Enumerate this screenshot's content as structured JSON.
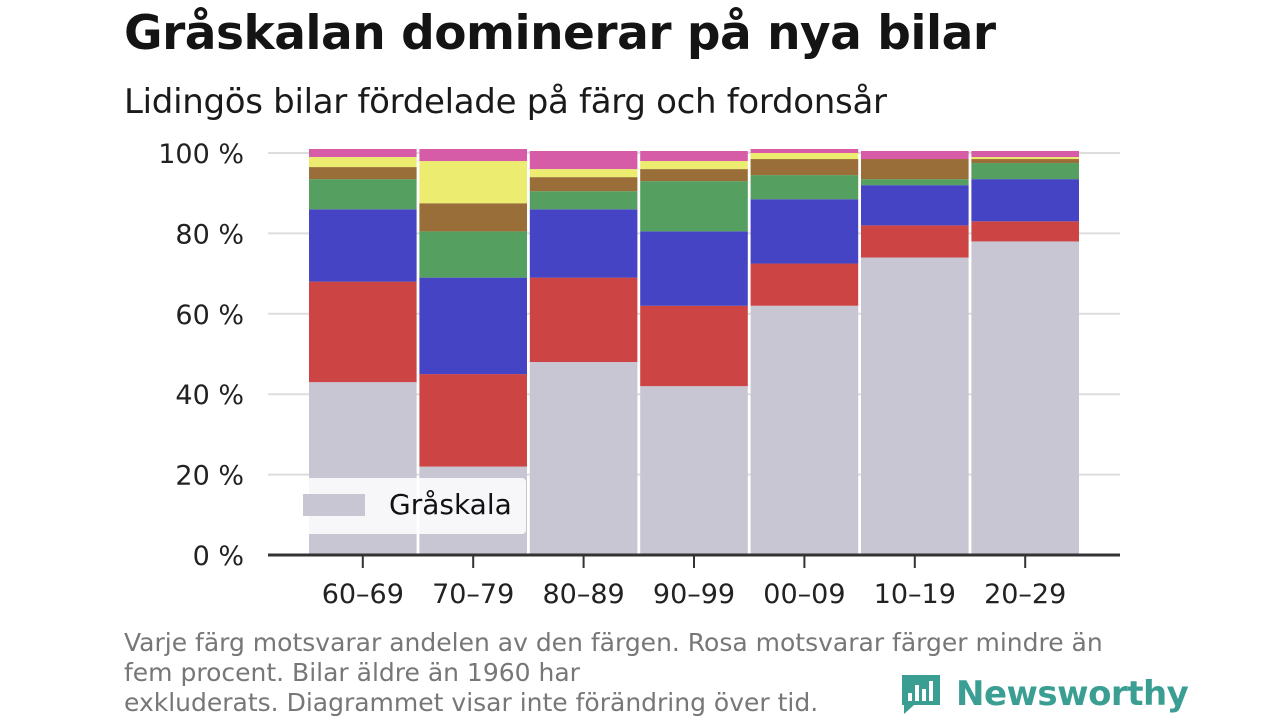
{
  "header": {
    "title": "Gråskalan dominerar på nya bilar",
    "subtitle": "Lidingös bilar fördelade på färg och fordonsår"
  },
  "footer": {
    "note_lines": [
      "Varje färg motsvarar andelen av den färgen. Rosa motsvarar färger mindre än",
      "fem procent. Bilar äldre än 1960 har",
      "exkluderats. Diagrammet visar inte förändring över tid."
    ],
    "brand": "Newsworthy",
    "brand_icon": "newsworthy-logo-icon",
    "brand_color": "#3a9e93"
  },
  "chart_data": {
    "type": "bar",
    "stacked": true,
    "categories": [
      "60–69",
      "70–79",
      "80–89",
      "90–99",
      "00–09",
      "10–19",
      "20–29"
    ],
    "series": [
      {
        "name": "Gråskala",
        "color": "#c8c6d3",
        "values": [
          43,
          22,
          48,
          42,
          62,
          74,
          78
        ]
      },
      {
        "color": "#cc4444",
        "values": [
          25,
          23,
          21,
          20,
          10.5,
          8,
          5
        ]
      },
      {
        "color": "#4444c4",
        "values": [
          18,
          24,
          17,
          18.5,
          16,
          10,
          10.5
        ]
      },
      {
        "color": "#55a060",
        "values": [
          7.5,
          11.5,
          4.5,
          12.5,
          6,
          1.5,
          4
        ]
      },
      {
        "color": "#9a6e38",
        "values": [
          3,
          7,
          3.5,
          3,
          4,
          5,
          1
        ]
      },
      {
        "color": "#ecec70",
        "values": [
          2.5,
          10.5,
          2,
          2,
          1.5,
          0,
          0.5
        ]
      },
      {
        "color": "#d65ca8",
        "values": [
          2,
          3,
          4.5,
          2.5,
          1,
          2,
          1.5
        ]
      }
    ],
    "yticks": [
      "0 %",
      "20 %",
      "40 %",
      "60 %",
      "80 %",
      "100 %"
    ],
    "ylim": [
      0,
      100
    ],
    "grid": true,
    "legend": {
      "position": "bottom-left",
      "entries": [
        "Gråskala"
      ]
    }
  }
}
